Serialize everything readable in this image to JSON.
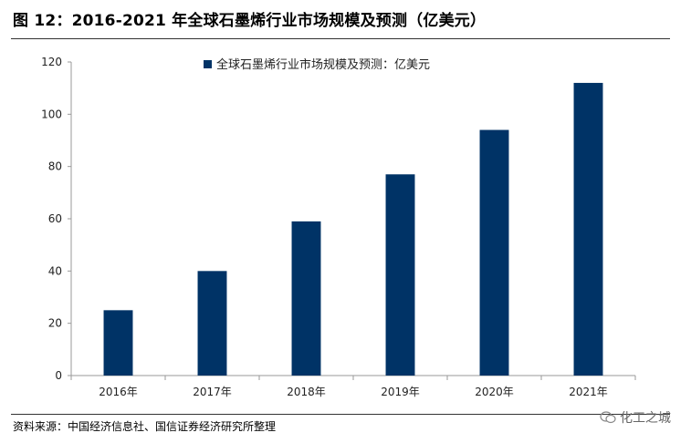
{
  "figure": {
    "title": "图 12：2016-2021 年全球石墨烯行业市场规模及预测（亿美元）",
    "source": "资料来源：中国经济信息社、国信证券经济研究所整理",
    "watermark": "化工之城"
  },
  "colors": {
    "bar": "#003366",
    "axis": "#999999",
    "rule": "#333333"
  },
  "chart_data": {
    "type": "bar",
    "title": "",
    "xlabel": "",
    "ylabel": "",
    "categories": [
      "2016年",
      "2017年",
      "2018年",
      "2019年",
      "2020年",
      "2021年"
    ],
    "series": [
      {
        "name": "全球石墨烯行业市场规模及预测：亿美元",
        "values": [
          25,
          40,
          59,
          77,
          94,
          112
        ]
      }
    ],
    "ylim": [
      0,
      120
    ],
    "yticks": [
      0,
      20,
      40,
      60,
      80,
      100,
      120
    ],
    "grid": false,
    "legend_position": "top-right"
  }
}
